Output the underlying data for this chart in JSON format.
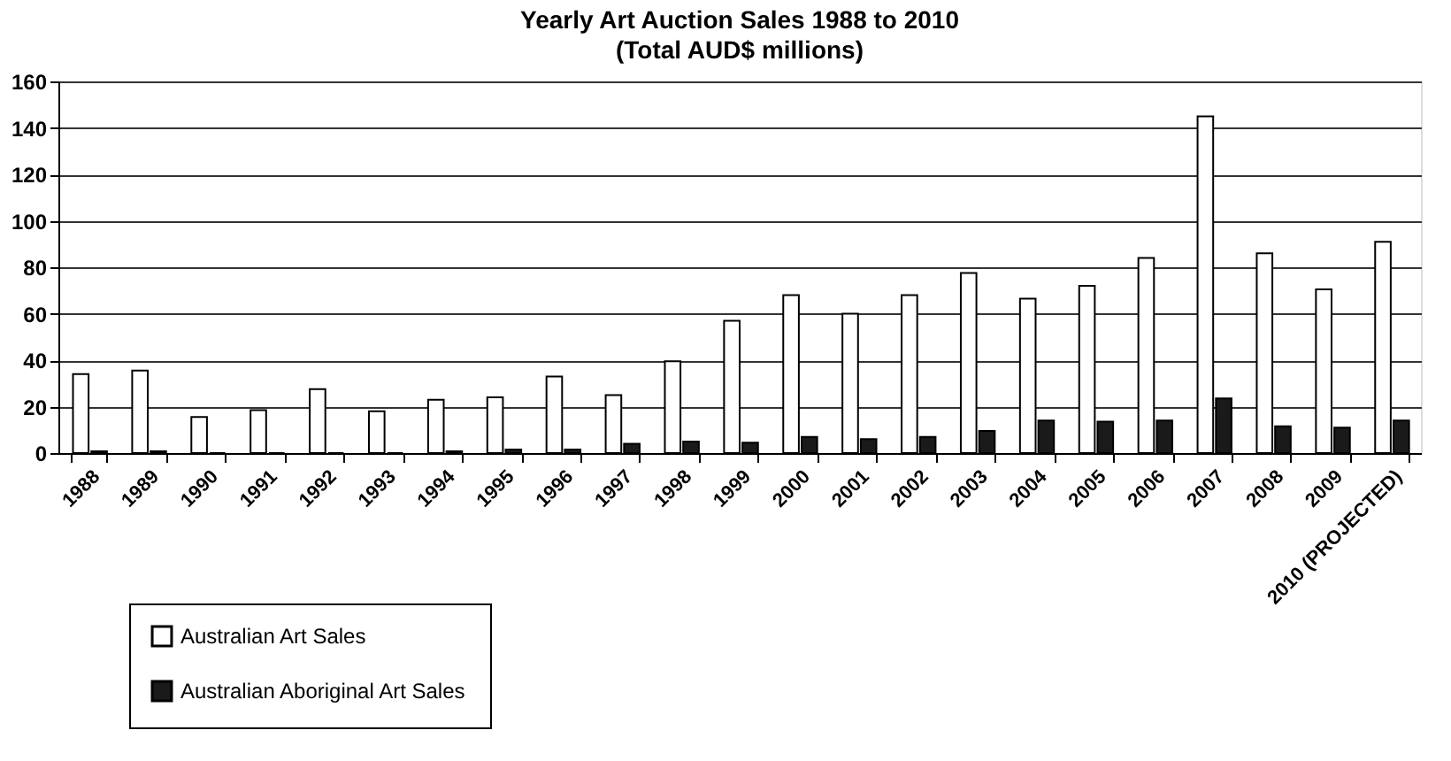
{
  "chart_data": {
    "type": "bar",
    "title": "Yearly Art Auction Sales 1988 to 2010",
    "subtitle": "(Total AUD$ millions)",
    "categories": [
      "1988",
      "1989",
      "1990",
      "1991",
      "1992",
      "1993",
      "1994",
      "1995",
      "1996",
      "1997",
      "1998",
      "1999",
      "2000",
      "2001",
      "2002",
      "2003",
      "2004",
      "2005",
      "2006",
      "2007",
      "2008",
      "2009",
      "2010 (PROJECTED)"
    ],
    "series": [
      {
        "name": "Australian Art Sales",
        "color": "#ffffff",
        "values": [
          34,
          35.5,
          15.5,
          18.5,
          27.5,
          18,
          23,
          24,
          33,
          25,
          39.5,
          57,
          68,
          60,
          68,
          77.5,
          66.5,
          72,
          84,
          145,
          86,
          70.5,
          91
        ]
      },
      {
        "name": "Australian Aboriginal Art Sales",
        "color": "#1a1a1a",
        "values": [
          0.8,
          0.8,
          0,
          0,
          0,
          0,
          0.8,
          1.5,
          1.5,
          4,
          5,
          4.5,
          7,
          6,
          7,
          9.5,
          14,
          13.5,
          14,
          23.5,
          11.5,
          11,
          14
        ]
      }
    ],
    "ylim": [
      0,
      160
    ],
    "yticks": [
      0,
      20,
      40,
      60,
      80,
      100,
      120,
      140,
      160
    ],
    "grid": "y",
    "legend": "bottom left"
  }
}
